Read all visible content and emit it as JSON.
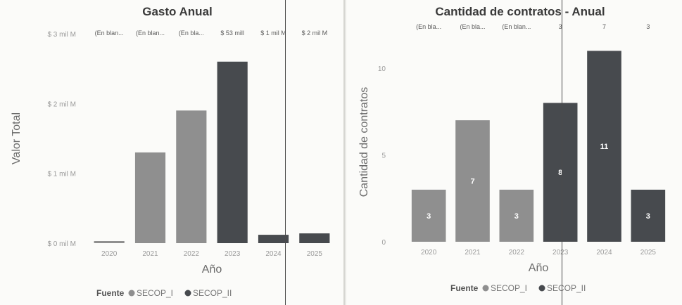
{
  "colors": {
    "secop_i": "#8f8f8f",
    "secop_ii": "#474a4e",
    "background": "#fbfbf9"
  },
  "chart_data": [
    {
      "type": "bar",
      "title": "Gasto Anual",
      "xlabel": "Año",
      "ylabel": "Valor Total",
      "categories": [
        "2020",
        "2021",
        "2022",
        "2023",
        "2024",
        "2025"
      ],
      "series": [
        {
          "name": "SECOP_I",
          "values": [
            0.03,
            1.3,
            1.9,
            null,
            null,
            null
          ]
        },
        {
          "name": "SECOP_II",
          "values": [
            null,
            null,
            null,
            2.6,
            0.12,
            0.14
          ]
        }
      ],
      "bar_fuente": [
        "SECOP_I",
        "SECOP_I",
        "SECOP_I",
        "SECOP_II",
        "SECOP_II",
        "SECOP_II"
      ],
      "ylim": [
        0,
        3
      ],
      "yticks": [
        0,
        1,
        2,
        3
      ],
      "ytick_labels": [
        "$ 0 mil M",
        "$ 1 mil M",
        "$ 2 mil M",
        "$ 3 mil M"
      ],
      "top_labels": [
        "(En blan...",
        "(En blan...",
        "(En bla...",
        "$ 53 mill",
        "$ 1 mil M",
        "$ 2 mil M"
      ],
      "data_labels": [],
      "legend": {
        "title": "Fuente",
        "entries": [
          "SECOP_I",
          "SECOP_II"
        ],
        "position": "bottom"
      },
      "grid": false
    },
    {
      "type": "bar",
      "title": "Cantidad de contratos - Anual",
      "xlabel": "Año",
      "ylabel": "Cantidad de contratos",
      "categories": [
        "2020",
        "2021",
        "2022",
        "2023",
        "2024",
        "2025"
      ],
      "series": [
        {
          "name": "SECOP_I",
          "values": [
            3,
            7,
            3,
            null,
            null,
            null
          ]
        },
        {
          "name": "SECOP_II",
          "values": [
            null,
            null,
            null,
            8,
            11,
            3
          ]
        }
      ],
      "bar_fuente": [
        "SECOP_I",
        "SECOP_I",
        "SECOP_I",
        "SECOP_II",
        "SECOP_II",
        "SECOP_II"
      ],
      "ylim": [
        0,
        11.5
      ],
      "yticks": [
        0,
        5,
        10
      ],
      "ytick_labels": [
        "0",
        "5",
        "10"
      ],
      "top_labels": [
        "(En bla...",
        "(En bla...",
        "(En blan...",
        "3",
        "7",
        "3"
      ],
      "data_labels": [
        "3",
        "7",
        "3",
        "8",
        "11",
        "3"
      ],
      "legend": {
        "title": "Fuente",
        "entries": [
          "SECOP_I",
          "SECOP_II"
        ],
        "position": "bottom"
      },
      "grid": false
    }
  ]
}
